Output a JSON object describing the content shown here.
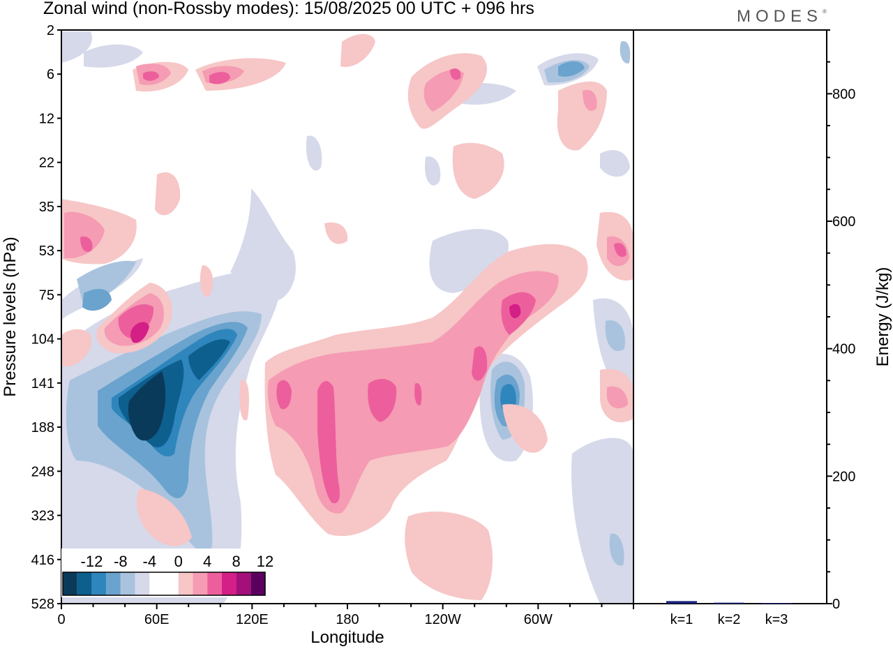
{
  "header": {
    "title": "Zonal wind (non-Rossby modes):  15/08/2025  00 UTC  + 096 hrs",
    "brand": "MODES",
    "brand_mark": "®"
  },
  "chart_data": [
    {
      "type": "heatmap",
      "title": "Zonal wind (non-Rossby modes):  15/08/2025  00 UTC  + 096 hrs",
      "xlabel": "Longitude",
      "ylabel": "Pressure levels (hPa)",
      "x_ticks": [
        "0",
        "60E",
        "120E",
        "180",
        "120W",
        "60W"
      ],
      "x_range": [
        0,
        360
      ],
      "y_ticks": [
        "2",
        "6",
        "12",
        "22",
        "35",
        "53",
        "75",
        "104",
        "141",
        "188",
        "248",
        "323",
        "416",
        "528"
      ],
      "colorbar": {
        "labels": [
          "-12",
          "-8",
          "-4",
          "0",
          "4",
          "8",
          "12"
        ],
        "colors": [
          "#0a3a5a",
          "#0d5f8e",
          "#2f86bd",
          "#6aa3cd",
          "#a9c3de",
          "#d5d9ea",
          "#ffffff",
          "#ffffff",
          "#f7c6c6",
          "#f59bb3",
          "#ec5f9c",
          "#d41f87",
          "#a4107a",
          "#5c0060"
        ]
      },
      "features": [
        {
          "name": "strong easterly core",
          "lon": 50,
          "level": "141-188",
          "value": -14
        },
        {
          "name": "easterly band",
          "lon": 100,
          "level": "104-141",
          "value": -8
        },
        {
          "name": "westerly jet",
          "lon": 200,
          "level": "141-248",
          "value": 8
        },
        {
          "name": "westerly band",
          "lon": 275,
          "level": "75-141",
          "value": 8
        },
        {
          "name": "easterly cell",
          "lon": 283,
          "level": "141-188",
          "value": -10
        },
        {
          "name": "westerly cell",
          "lon": 50,
          "level": "104",
          "value": 10
        }
      ]
    },
    {
      "type": "bar",
      "categories": [
        "k=1",
        "k=2",
        "k=3"
      ],
      "values": [
        4,
        1.5,
        1
      ],
      "ylabel": "Energy (J/kg)",
      "ylim": [
        0,
        900
      ],
      "y_ticks": [
        0,
        200,
        400,
        600,
        800
      ],
      "bar_color": "#1a237e"
    }
  ]
}
